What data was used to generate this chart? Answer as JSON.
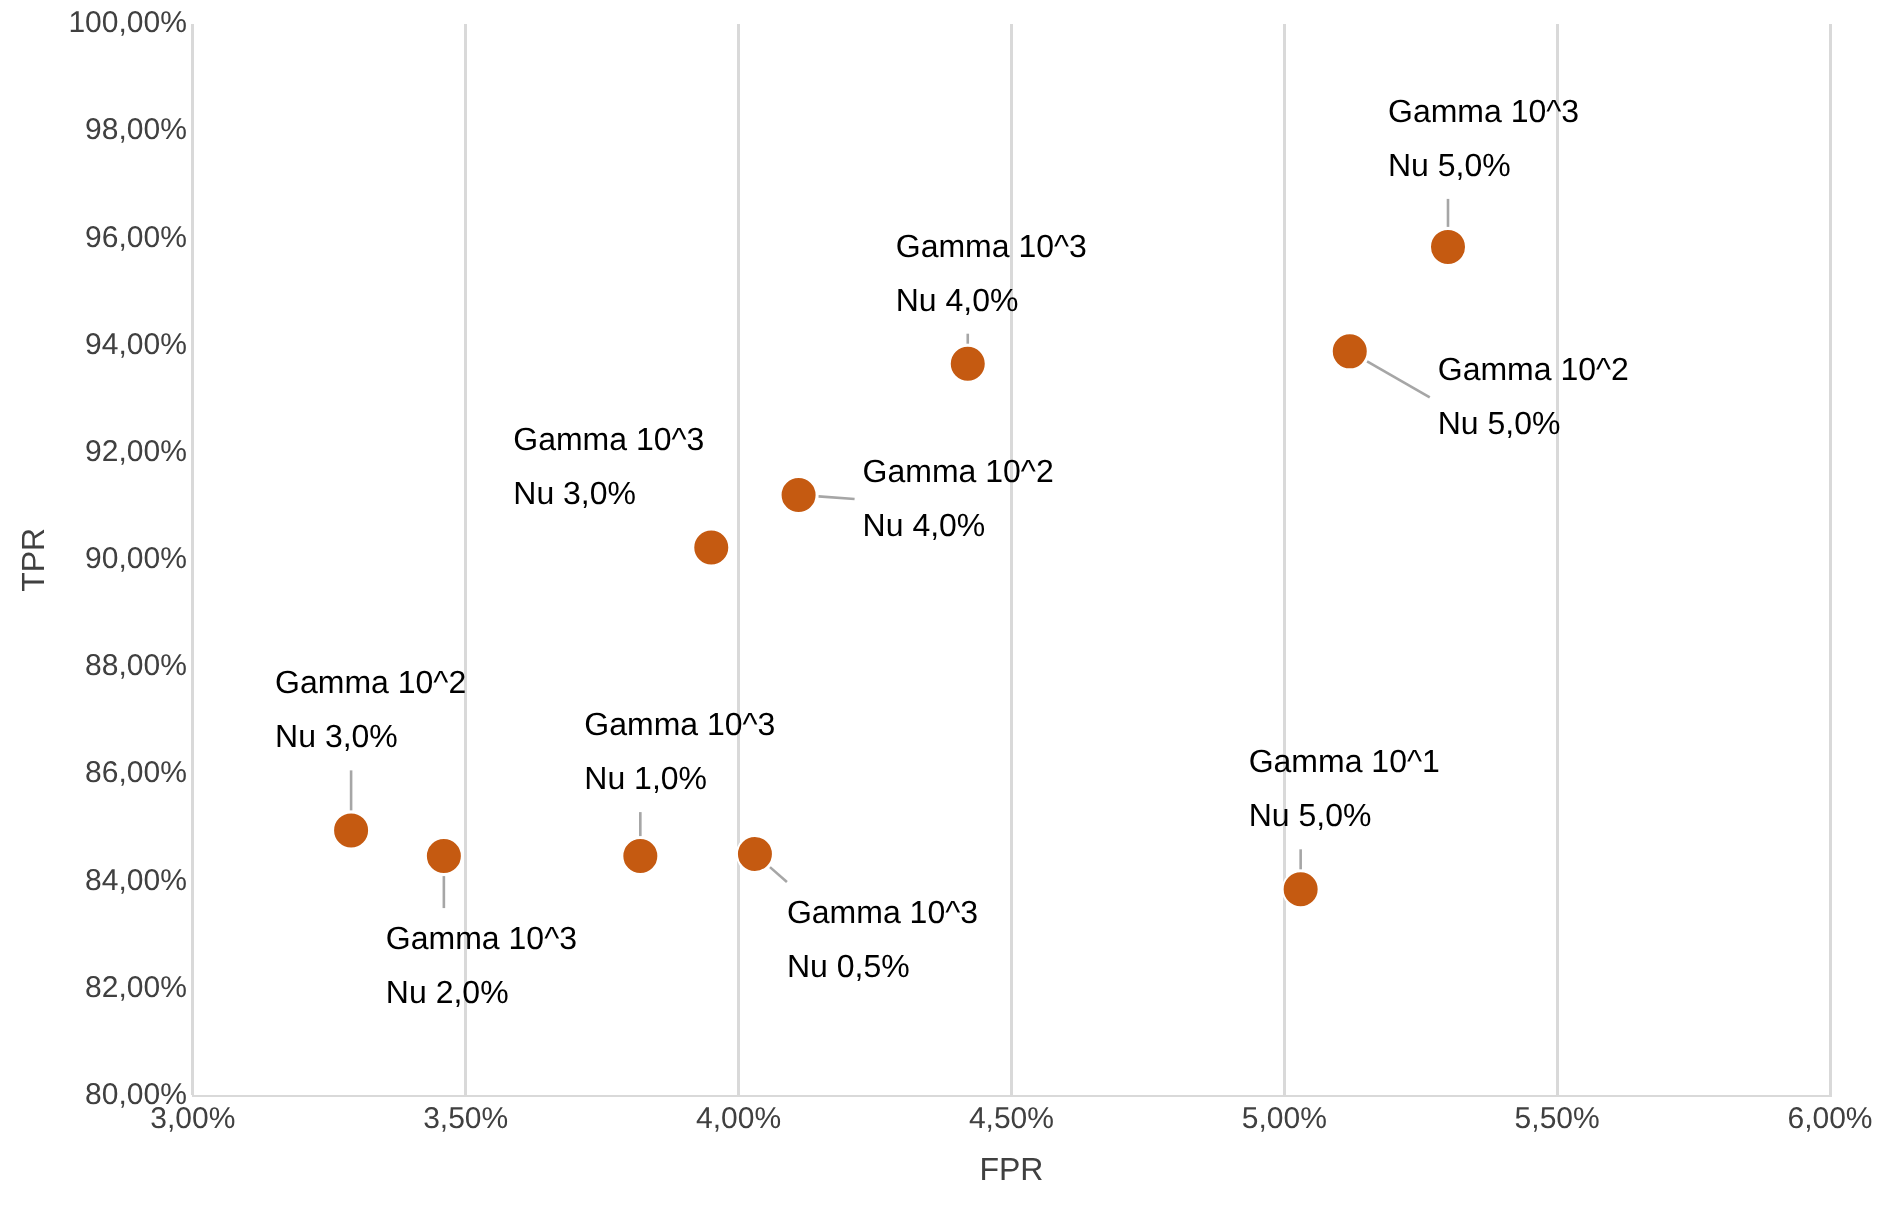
{
  "chart_data": {
    "type": "scatter",
    "xlabel": "FPR",
    "ylabel": "TPR",
    "x": [
      3.29,
      3.46,
      3.82,
      4.03,
      3.95,
      4.11,
      4.42,
      5.12,
      5.3,
      5.03
    ],
    "series": [
      {
        "color": "#c55a11",
        "values": [
          84.95,
          84.47,
          84.47,
          84.51,
          90.23,
          91.21,
          93.66,
          93.89,
          95.84,
          83.85
        ]
      }
    ],
    "xlim": [
      3,
      6
    ],
    "ylim": [
      80,
      100
    ],
    "xticks": [
      {
        "value": 3,
        "label": "3,00%"
      },
      {
        "value": 3.5,
        "label": "3,50%"
      },
      {
        "value": 4,
        "label": "4,00%"
      },
      {
        "value": 4.5,
        "label": "4,50%"
      },
      {
        "value": 5,
        "label": "5,00%"
      },
      {
        "value": 5.5,
        "label": "5,50%"
      },
      {
        "value": 6,
        "label": "6,00%"
      }
    ],
    "yticks": [
      {
        "value": 80,
        "label": "80,00%"
      },
      {
        "value": 82,
        "label": "82,00%"
      },
      {
        "value": 84,
        "label": "84,00%"
      },
      {
        "value": 86,
        "label": "86,00%"
      },
      {
        "value": 88,
        "label": "88,00%"
      },
      {
        "value": 90,
        "label": "90,00%"
      },
      {
        "value": 92,
        "label": "92,00%"
      },
      {
        "value": 94,
        "label": "94,00%"
      },
      {
        "value": 96,
        "label": "96,00%"
      },
      {
        "value": 98,
        "label": "98,00%"
      },
      {
        "value": 100,
        "label": "100,00%"
      }
    ],
    "grid": "x",
    "legend": false,
    "marker": "circle",
    "annotations": [
      {
        "text": "Gamma 10^2\nNu 3,0%",
        "x": 3.29,
        "y": 84.95
      },
      {
        "text": "Gamma 10^3\nNu 2,0%",
        "x": 3.46,
        "y": 84.47
      },
      {
        "text": "Gamma 10^3\nNu 1,0%",
        "x": 3.82,
        "y": 84.47
      },
      {
        "text": "Gamma 10^3\nNu 0,5%",
        "x": 4.03,
        "y": 84.51
      },
      {
        "text": "Gamma 10^3\nNu 3,0%",
        "x": 3.95,
        "y": 90.23
      },
      {
        "text": "Gamma 10^2\nNu 4,0%",
        "x": 4.11,
        "y": 91.21
      },
      {
        "text": "Gamma 10^3\nNu 4,0%",
        "x": 4.42,
        "y": 93.66
      },
      {
        "text": "Gamma 10^2\nNu 5,0%",
        "x": 5.12,
        "y": 93.89
      },
      {
        "text": "Gamma 10^3\nNu 5,0%",
        "x": 5.3,
        "y": 95.84
      },
      {
        "text": "Gamma 10^1\nNu 5,0%",
        "x": 5.03,
        "y": 83.85
      }
    ]
  }
}
